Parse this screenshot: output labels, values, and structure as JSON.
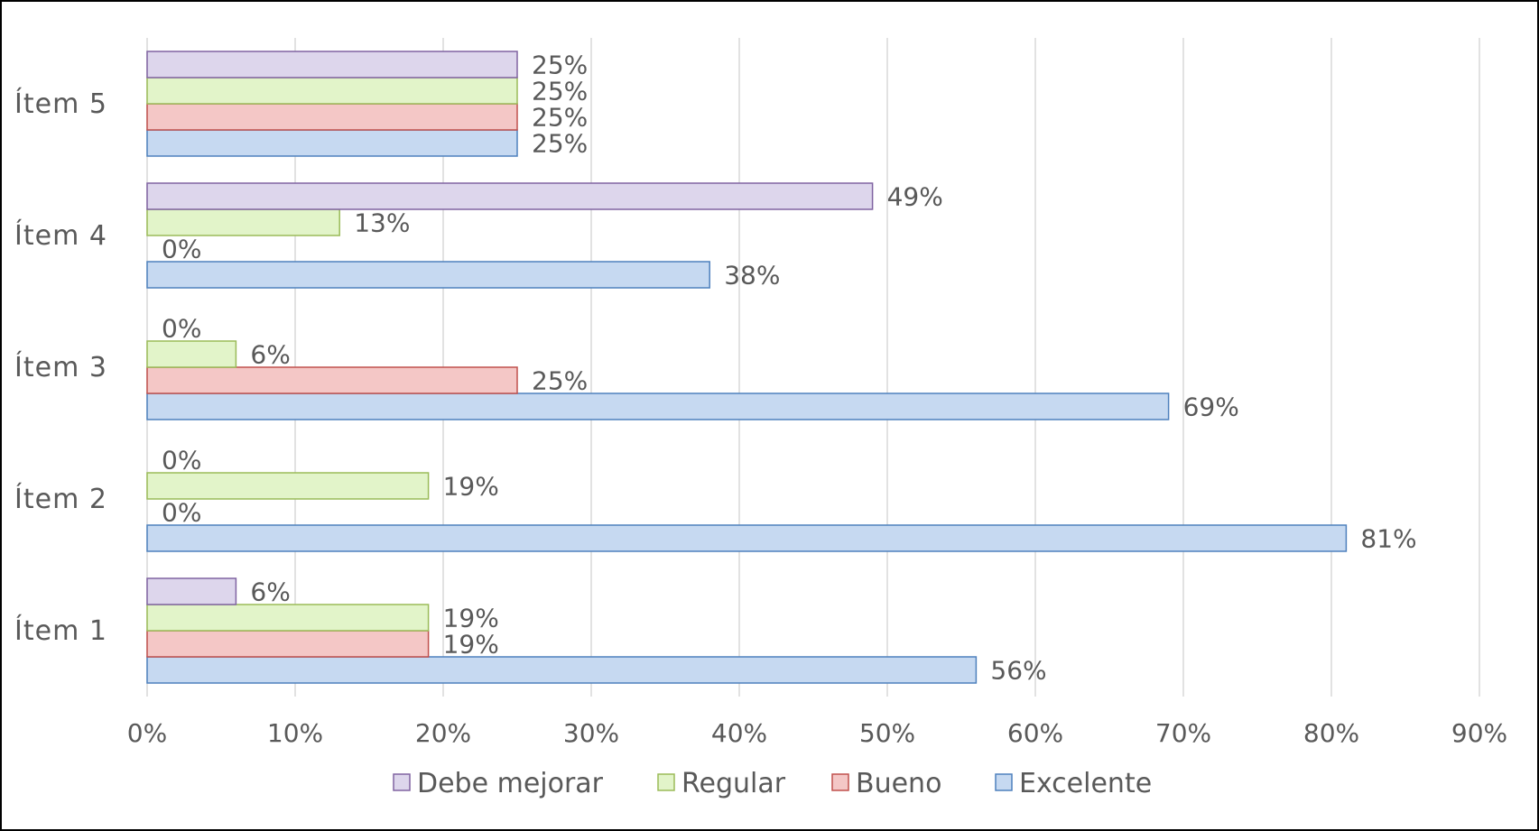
{
  "chart_data": {
    "type": "bar",
    "orientation": "horizontal",
    "categories": [
      "Ítem 1",
      "Ítem 2",
      "Ítem 3",
      "Ítem 4",
      "Ítem 5"
    ],
    "series": [
      {
        "name": "Excelente",
        "color": "#c6d9f1",
        "border": "#4f81bd",
        "values": [
          56,
          81,
          69,
          38,
          25
        ],
        "labels": [
          "56%",
          "81%",
          "69%",
          "38%",
          "25%"
        ]
      },
      {
        "name": "Bueno",
        "color": "#f4c7c6",
        "border": "#c0504d",
        "values": [
          19,
          0,
          25,
          0,
          25
        ],
        "labels": [
          "19%",
          "0%",
          "25%",
          "0%",
          "25%"
        ]
      },
      {
        "name": "Regular",
        "color": "#e2f4c9",
        "border": "#9bbb59",
        "values": [
          19,
          19,
          6,
          13,
          25
        ],
        "labels": [
          "19%",
          "19%",
          "6%",
          "13%",
          "25%"
        ]
      },
      {
        "name": "Debe mejorar",
        "color": "#ddd6ec",
        "border": "#8064a2",
        "values": [
          6,
          0,
          0,
          49,
          25
        ],
        "labels": [
          "6%",
          "0%",
          "0%",
          "49%",
          "25%"
        ]
      }
    ],
    "xlim": [
      0,
      90
    ],
    "xticks": [
      0,
      10,
      20,
      30,
      40,
      50,
      60,
      70,
      80,
      90
    ],
    "xtick_labels": [
      "0%",
      "10%",
      "20%",
      "30%",
      "40%",
      "50%",
      "60%",
      "70%",
      "80%",
      "90%"
    ],
    "grid": "vertical",
    "legend_position": "bottom",
    "legend_order": [
      "Debe mejorar",
      "Regular",
      "Bueno",
      "Excelente"
    ],
    "title": "",
    "xlabel": "",
    "ylabel": ""
  }
}
